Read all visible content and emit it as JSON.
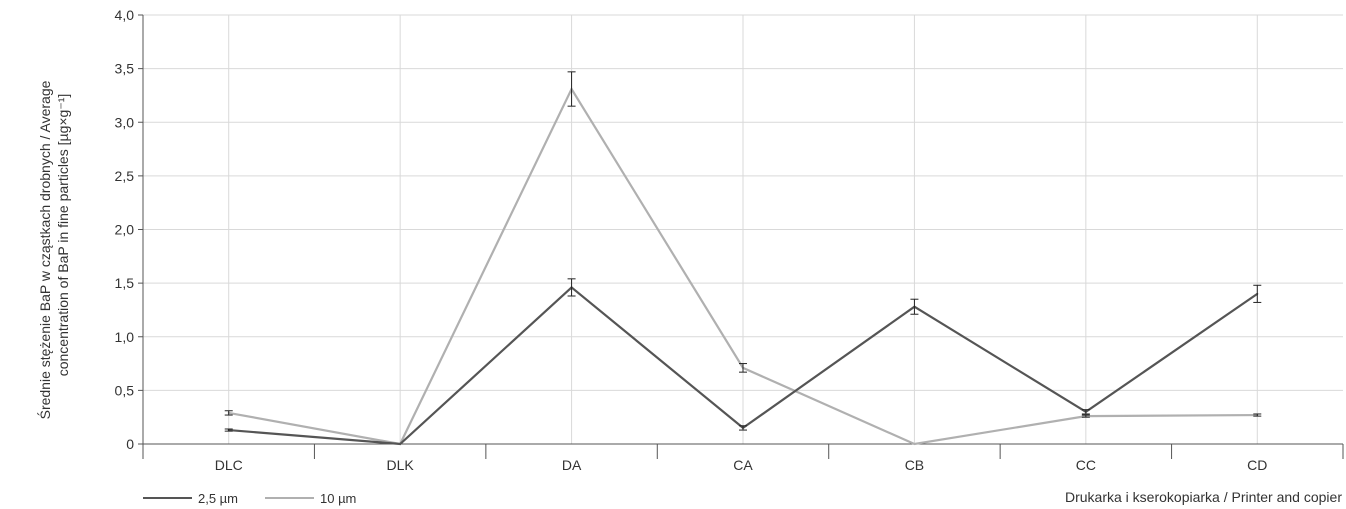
{
  "chart_data": {
    "type": "line",
    "categories": [
      "DLC",
      "DLK",
      "DA",
      "CA",
      "CB",
      "CC",
      "CD"
    ],
    "series": [
      {
        "name": "2,5 µm",
        "color": "#555555",
        "values": [
          0.13,
          0.0,
          1.46,
          0.15,
          1.28,
          0.3,
          1.4
        ],
        "error": [
          0.01,
          0.0,
          0.08,
          0.02,
          0.07,
          0.02,
          0.08
        ]
      },
      {
        "name": "10 µm",
        "color": "#b0b0b0",
        "values": [
          0.29,
          0.0,
          3.31,
          0.71,
          0.0,
          0.26,
          0.27
        ],
        "error": [
          0.02,
          0.0,
          0.16,
          0.04,
          0.0,
          0.01,
          0.01
        ]
      }
    ],
    "ylim": [
      0,
      4.0
    ],
    "yticks": [
      "0",
      "0,5",
      "1,0",
      "1,5",
      "2,0",
      "2,5",
      "3,0",
      "3,5",
      "4,0"
    ],
    "ylabel_line1": "Średnie stężenie BaP w cząstkach drobnych / Average",
    "ylabel_line2": "concentration of BaP in fine particles [µg×g⁻¹]",
    "xlabel": "Drukarka i kserokopiarka / Printer and copier",
    "grid": true,
    "legend_position": "bottom-left"
  }
}
